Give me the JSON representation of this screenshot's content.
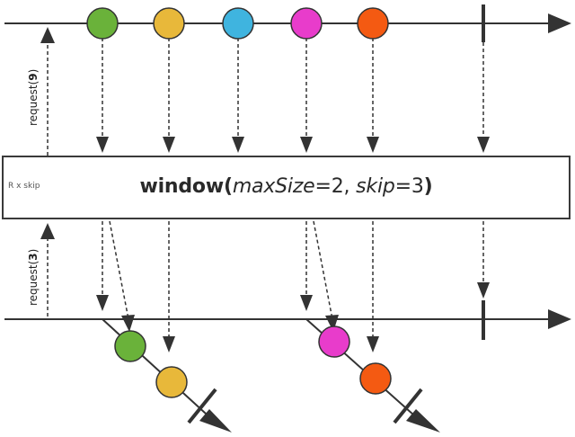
{
  "operator": {
    "name": "window",
    "open_paren": "(",
    "param1_name": "maxSize",
    "param1_value": "=2, ",
    "param2_name": "skip",
    "param2_value": "=3",
    "close_paren": ")",
    "note": "R x skip"
  },
  "upstream_request": {
    "label": "request",
    "open": "(",
    "value": "9",
    "close": ")"
  },
  "downstream_request": {
    "label": "request",
    "open": "(",
    "value": "3",
    "close": ")"
  },
  "colors": {
    "green": "#6ab23a",
    "yellow": "#e8b83a",
    "blue": "#3fb4df",
    "magenta": "#e83ccb",
    "orange": "#f45a12",
    "line": "#333333"
  },
  "source_items": [
    "green",
    "yellow",
    "blue",
    "magenta",
    "orange"
  ],
  "windows": [
    {
      "items": [
        "green",
        "yellow"
      ]
    },
    {
      "items": [
        "magenta",
        "orange"
      ]
    }
  ]
}
